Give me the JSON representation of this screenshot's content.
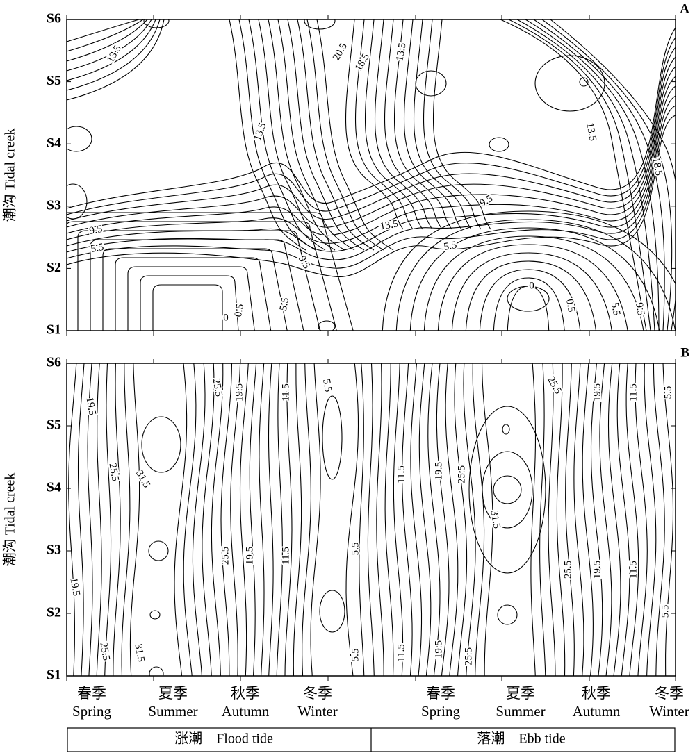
{
  "chart_data": [
    {
      "type": "contour",
      "panel_label": "A",
      "y_label": "潮沟 Tidal creek",
      "y_categories": [
        "S1",
        "S2",
        "S3",
        "S4",
        "S5",
        "S6"
      ],
      "contour_labels": [
        13.5,
        20.5,
        18.5,
        13.5,
        13.5,
        13.5,
        18.5,
        9.5,
        13.5,
        9.5,
        5.5,
        5.5,
        9.5,
        0,
        0.5,
        5.5,
        0,
        0.5,
        5.5,
        9.5
      ]
    },
    {
      "type": "contour",
      "panel_label": "B",
      "y_label": "潮沟 Tidal creek",
      "y_categories": [
        "S1",
        "S2",
        "S3",
        "S4",
        "S5",
        "S6"
      ],
      "contour_labels": [
        19.5,
        25.5,
        31.5,
        25.5,
        19.5,
        11.5,
        5.5,
        19.5,
        25.5,
        31.5,
        25.5,
        19.5,
        11.5,
        5.5,
        5.5,
        11.5,
        19.5,
        25.5,
        31.5,
        25.5,
        19.5,
        11.5,
        5.5,
        11.5,
        19.5,
        25.5,
        25.5,
        19.5,
        11.5,
        5.5
      ],
      "categories": [
        "春季",
        "夏季",
        "秋季",
        "冬季",
        "春季",
        "夏季",
        "秋季",
        "冬季"
      ],
      "categories_en": [
        "Spring",
        "Summer",
        "Autumn",
        "Winter",
        "Spring",
        "Summer",
        "Autumn",
        "Winter"
      ],
      "groups": [
        "涨潮    Flood tide",
        "落潮    Ebb tide"
      ]
    }
  ]
}
